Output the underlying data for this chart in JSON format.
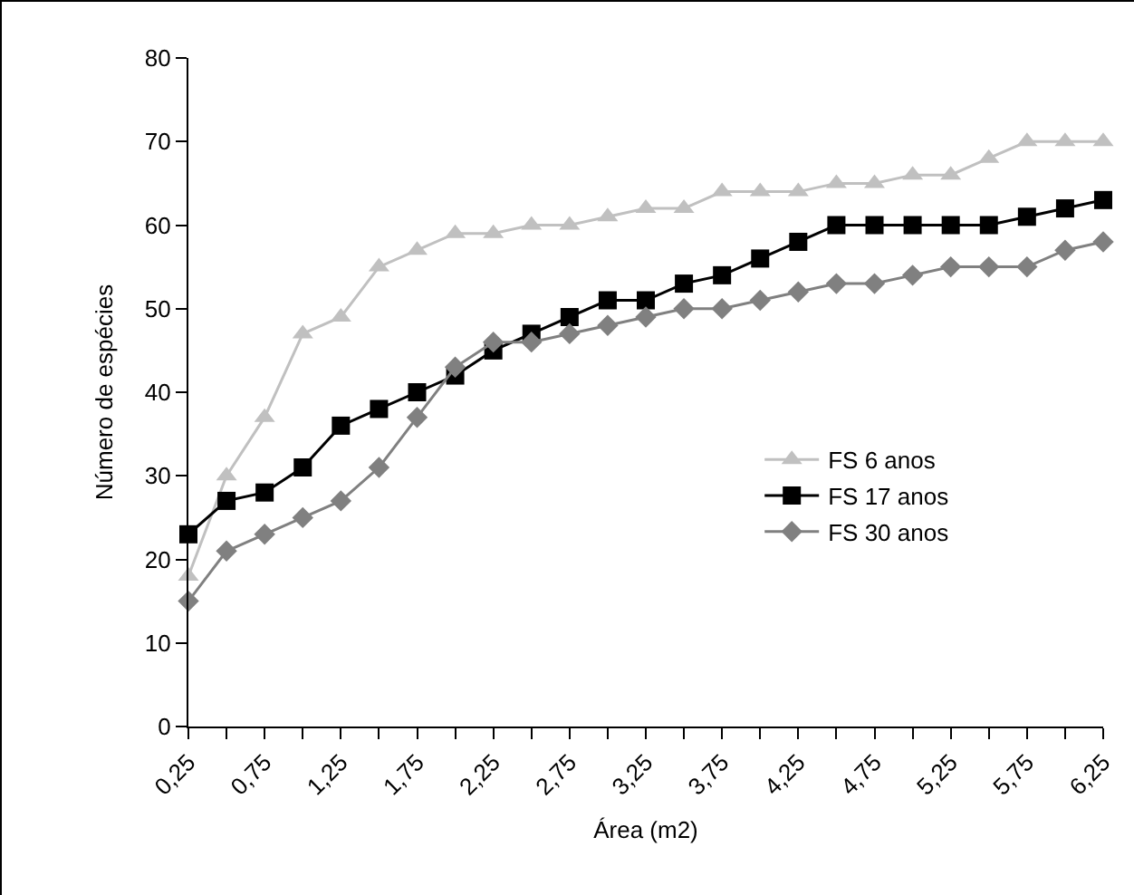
{
  "chart_data": {
    "type": "line",
    "xlabel": "Área (m2)",
    "ylabel": "Número de espécies",
    "x": [
      0.25,
      0.5,
      0.75,
      1,
      1.25,
      1.5,
      1.75,
      2,
      2.25,
      2.5,
      2.75,
      3,
      3.25,
      3.5,
      3.75,
      4,
      4.25,
      4.5,
      4.75,
      5,
      5.25,
      5.5,
      5.75,
      6,
      6.25
    ],
    "xlim": [
      0.25,
      6.25
    ],
    "xticks": [
      {
        "value": 0.25,
        "label": "0,25"
      },
      {
        "value": 0.5,
        "label": null
      },
      {
        "value": 0.75,
        "label": "0,75"
      },
      {
        "value": 1,
        "label": null
      },
      {
        "value": 1.25,
        "label": "1,25"
      },
      {
        "value": 1.5,
        "label": null
      },
      {
        "value": 1.75,
        "label": "1,75"
      },
      {
        "value": 2,
        "label": null
      },
      {
        "value": 2.25,
        "label": "2,25"
      },
      {
        "value": 2.5,
        "label": null
      },
      {
        "value": 2.75,
        "label": "2,75"
      },
      {
        "value": 3,
        "label": null
      },
      {
        "value": 3.25,
        "label": "3,25"
      },
      {
        "value": 3.5,
        "label": null
      },
      {
        "value": 3.75,
        "label": "3,75"
      },
      {
        "value": 4,
        "label": null
      },
      {
        "value": 4.25,
        "label": "4,25"
      },
      {
        "value": 4.5,
        "label": null
      },
      {
        "value": 4.75,
        "label": "4,75"
      },
      {
        "value": 5,
        "label": null
      },
      {
        "value": 5.25,
        "label": "5,25"
      },
      {
        "value": 5.5,
        "label": null
      },
      {
        "value": 5.75,
        "label": "5,75"
      },
      {
        "value": 6,
        "label": null
      },
      {
        "value": 6.25,
        "label": "6,25"
      }
    ],
    "ylim": [
      0,
      80
    ],
    "yticks": [
      0,
      10,
      20,
      30,
      40,
      50,
      60,
      70,
      80
    ],
    "grid": false,
    "legend": "right",
    "line_style": "solid",
    "series": [
      {
        "name": "FS 6 anos",
        "color": "#c0c0c0",
        "marker": "triangle",
        "values": [
          18,
          30,
          37,
          47,
          49,
          55,
          57,
          59,
          59,
          60,
          60,
          61,
          62,
          62,
          64,
          64,
          64,
          65,
          65,
          66,
          66,
          68,
          70,
          70,
          70
        ]
      },
      {
        "name": "FS 17 anos",
        "color": "#000000",
        "marker": "square",
        "values": [
          23,
          27,
          28,
          31,
          36,
          38,
          40,
          42,
          45,
          47,
          49,
          51,
          51,
          53,
          54,
          56,
          58,
          60,
          60,
          60,
          60,
          60,
          61,
          62,
          63
        ]
      },
      {
        "name": "FS 30 anos",
        "color": "#808080",
        "marker": "diamond",
        "values": [
          15,
          21,
          23,
          25,
          27,
          31,
          37,
          43,
          46,
          46,
          47,
          48,
          49,
          50,
          50,
          51,
          52,
          53,
          53,
          54,
          55,
          55,
          55,
          57,
          58
        ]
      }
    ]
  }
}
